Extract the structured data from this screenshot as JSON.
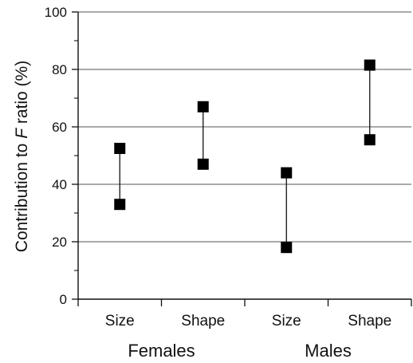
{
  "chart_data": {
    "type": "scatter",
    "ylabel_parts": [
      "Contribution to ",
      "F",
      " ratio (%)"
    ],
    "ylim": [
      0,
      100
    ],
    "yticks": [
      0,
      20,
      40,
      60,
      80,
      100
    ],
    "grid": true,
    "categories": [
      "Size",
      "Shape",
      "Size",
      "Shape"
    ],
    "groups": [
      "Females",
      "Males"
    ],
    "points": [
      {
        "category": "Size",
        "group": "Females",
        "low": 33,
        "high": 52.5
      },
      {
        "category": "Shape",
        "group": "Females",
        "low": 47,
        "high": 67
      },
      {
        "category": "Size",
        "group": "Males",
        "low": 18,
        "high": 44
      },
      {
        "category": "Shape",
        "group": "Males",
        "low": 55.5,
        "high": 81.5
      }
    ]
  }
}
